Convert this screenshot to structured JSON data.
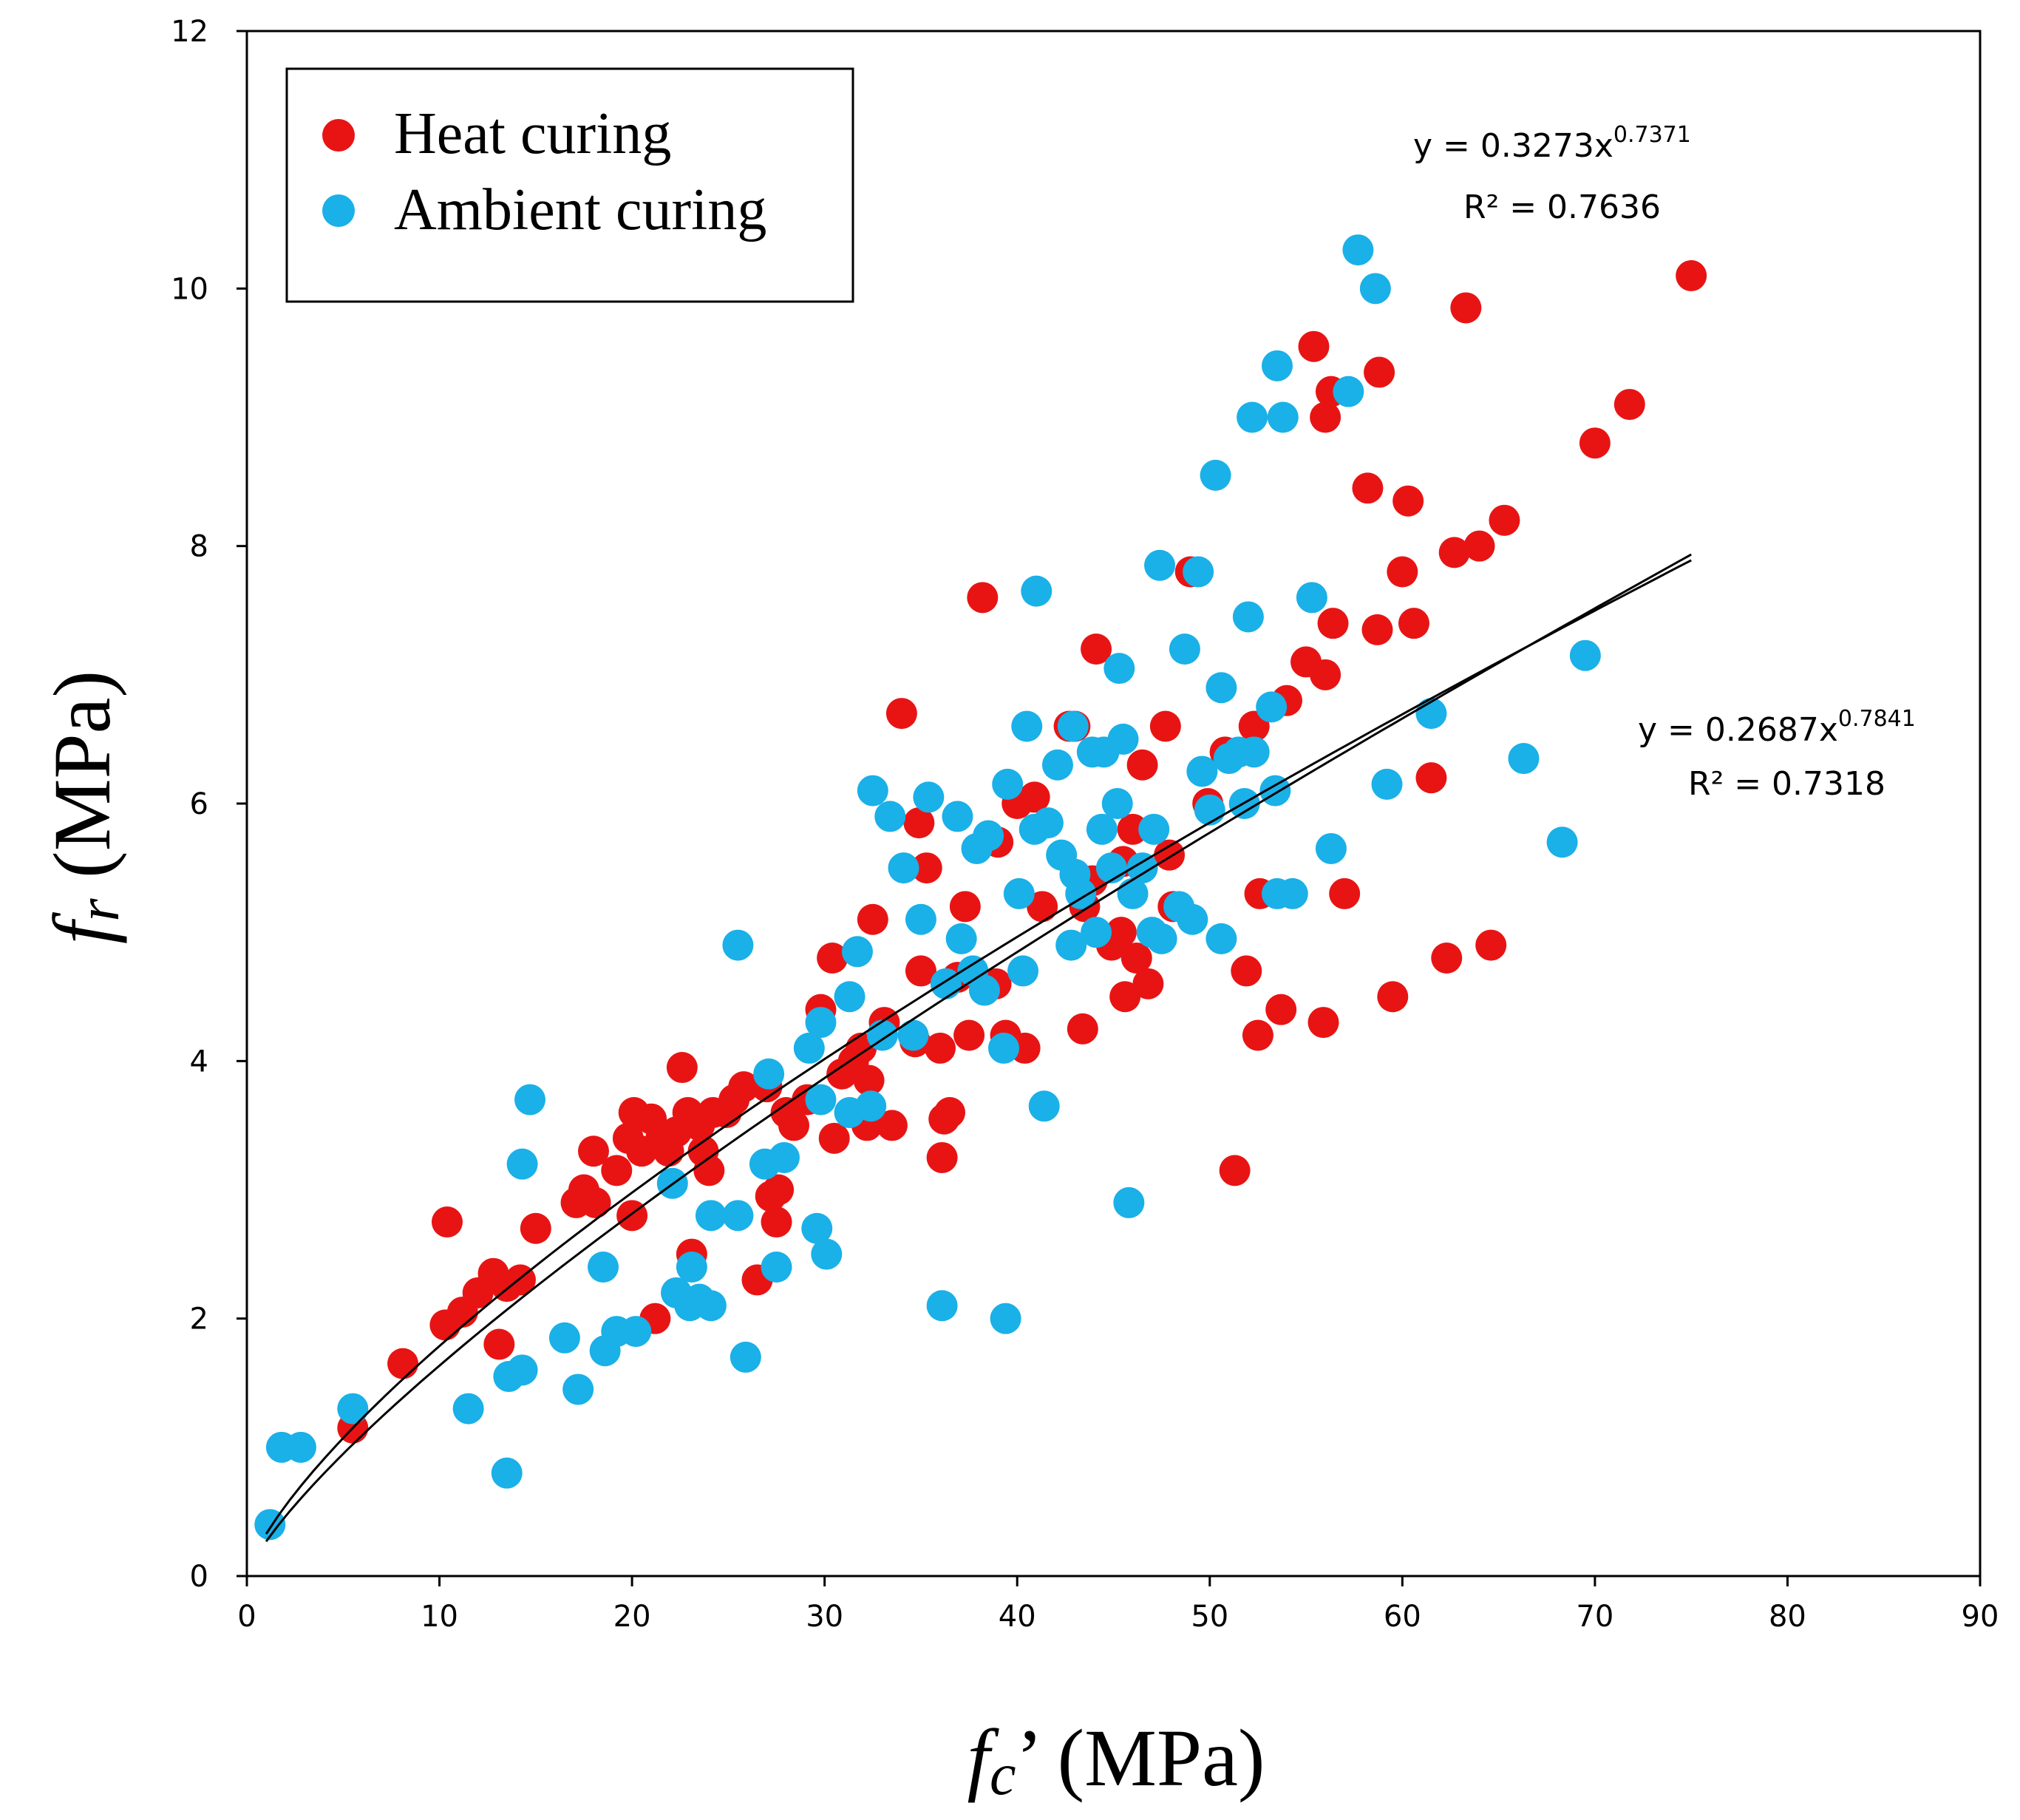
{
  "chart_data": {
    "type": "scatter",
    "title": "",
    "x_axis": {
      "label_symbol": "f",
      "label_sub": "c",
      "label_suffix": "’ (MPa)",
      "range": [
        0,
        90
      ],
      "ticks": [
        0,
        10,
        20,
        30,
        40,
        50,
        60,
        70,
        80,
        90
      ],
      "tick_labels": [
        "0",
        "10",
        "20",
        "30",
        "40",
        "50",
        "60",
        "70",
        "80",
        "90"
      ]
    },
    "y_axis": {
      "label_symbol": "f",
      "label_sub": "r",
      "label_suffix": " (MPa)",
      "range": [
        0,
        12
      ],
      "ticks": [
        0,
        2,
        4,
        6,
        8,
        10,
        12
      ],
      "tick_labels": [
        "0",
        "2",
        "4",
        "6",
        "8",
        "10",
        "12"
      ]
    },
    "grid": false,
    "legend": {
      "position": "top-left",
      "boxed": true
    },
    "series": [
      {
        "name": "Heat curing",
        "color": "#e81414",
        "points": [
          [
            5.5,
            1.15
          ],
          [
            8.1,
            1.65
          ],
          [
            10.3,
            1.95
          ],
          [
            10.4,
            2.75
          ],
          [
            11.2,
            2.05
          ],
          [
            12.0,
            2.2
          ],
          [
            12.8,
            2.35
          ],
          [
            13.1,
            1.8
          ],
          [
            13.5,
            2.25
          ],
          [
            14.2,
            2.3
          ],
          [
            15.0,
            2.7
          ],
          [
            17.1,
            2.9
          ],
          [
            17.5,
            3.0
          ],
          [
            18.0,
            3.3
          ],
          [
            18.1,
            2.9
          ],
          [
            19.2,
            3.15
          ],
          [
            19.8,
            3.4
          ],
          [
            20.0,
            2.8
          ],
          [
            20.1,
            3.6
          ],
          [
            20.5,
            3.3
          ],
          [
            21.0,
            3.55
          ],
          [
            21.2,
            2.0
          ],
          [
            21.5,
            3.4
          ],
          [
            21.9,
            3.3
          ],
          [
            22.3,
            3.45
          ],
          [
            22.6,
            3.95
          ],
          [
            22.9,
            3.6
          ],
          [
            23.1,
            2.5
          ],
          [
            23.5,
            3.5
          ],
          [
            23.7,
            3.3
          ],
          [
            24.0,
            3.15
          ],
          [
            24.2,
            3.6
          ],
          [
            24.9,
            3.6
          ],
          [
            25.3,
            3.7
          ],
          [
            25.8,
            3.8
          ],
          [
            26.5,
            2.3
          ],
          [
            27.0,
            3.8
          ],
          [
            27.2,
            2.95
          ],
          [
            27.5,
            2.75
          ],
          [
            27.6,
            3.0
          ],
          [
            28.0,
            3.6
          ],
          [
            28.4,
            3.5
          ],
          [
            29.1,
            3.7
          ],
          [
            29.8,
            4.4
          ],
          [
            30.4,
            4.8
          ],
          [
            30.5,
            3.4
          ],
          [
            30.9,
            3.9
          ],
          [
            31.5,
            4.0
          ],
          [
            31.9,
            4.1
          ],
          [
            32.2,
            3.5
          ],
          [
            32.3,
            3.85
          ],
          [
            32.5,
            5.1
          ],
          [
            33.1,
            4.3
          ],
          [
            33.5,
            3.5
          ],
          [
            34.0,
            6.7
          ],
          [
            34.7,
            4.15
          ],
          [
            34.9,
            5.85
          ],
          [
            35.0,
            4.7
          ],
          [
            35.3,
            5.5
          ],
          [
            36.0,
            4.1
          ],
          [
            36.1,
            3.25
          ],
          [
            36.2,
            3.55
          ],
          [
            36.5,
            3.6
          ],
          [
            36.9,
            4.65
          ],
          [
            37.3,
            5.2
          ],
          [
            37.5,
            4.2
          ],
          [
            38.2,
            7.6
          ],
          [
            38.9,
            4.6
          ],
          [
            39.0,
            5.7
          ],
          [
            39.4,
            4.2
          ],
          [
            40.0,
            6.0
          ],
          [
            40.4,
            4.1
          ],
          [
            40.9,
            6.05
          ],
          [
            41.3,
            5.2
          ],
          [
            42.7,
            6.6
          ],
          [
            43.0,
            6.6
          ],
          [
            43.4,
            4.25
          ],
          [
            43.5,
            5.2
          ],
          [
            43.9,
            5.4
          ],
          [
            44.1,
            7.2
          ],
          [
            44.9,
            4.9
          ],
          [
            45.4,
            5.0
          ],
          [
            45.5,
            5.55
          ],
          [
            45.6,
            4.5
          ],
          [
            46.0,
            5.8
          ],
          [
            46.2,
            4.8
          ],
          [
            46.5,
            6.3
          ],
          [
            46.8,
            4.6
          ],
          [
            47.7,
            6.6
          ],
          [
            47.9,
            5.6
          ],
          [
            48.1,
            5.2
          ],
          [
            49.0,
            7.8
          ],
          [
            49.9,
            6.0
          ],
          [
            50.8,
            6.4
          ],
          [
            51.3,
            3.15
          ],
          [
            51.9,
            4.7
          ],
          [
            52.3,
            6.6
          ],
          [
            52.5,
            4.2
          ],
          [
            52.6,
            5.3
          ],
          [
            53.7,
            4.4
          ],
          [
            54.0,
            6.8
          ],
          [
            55.0,
            7.1
          ],
          [
            55.4,
            9.55
          ],
          [
            55.9,
            4.3
          ],
          [
            56.0,
            7.0
          ],
          [
            56.0,
            9.0
          ],
          [
            56.3,
            9.2
          ],
          [
            56.4,
            7.4
          ],
          [
            57.0,
            5.3
          ],
          [
            58.2,
            8.45
          ],
          [
            58.7,
            7.35
          ],
          [
            58.8,
            9.35
          ],
          [
            59.5,
            4.5
          ],
          [
            60.0,
            7.8
          ],
          [
            60.3,
            8.35
          ],
          [
            60.6,
            7.4
          ],
          [
            61.5,
            6.2
          ],
          [
            62.3,
            4.8
          ],
          [
            62.7,
            7.95
          ],
          [
            63.3,
            9.85
          ],
          [
            64.0,
            8.0
          ],
          [
            64.6,
            4.9
          ],
          [
            65.3,
            8.2
          ],
          [
            70.0,
            8.8
          ],
          [
            71.8,
            9.1
          ],
          [
            75.0,
            10.1
          ]
        ]
      },
      {
        "name": "Ambient curing",
        "color": "#1ab0e8",
        "points": [
          [
            1.2,
            0.4
          ],
          [
            1.8,
            1.0
          ],
          [
            2.8,
            1.0
          ],
          [
            5.5,
            1.3
          ],
          [
            11.5,
            1.3
          ],
          [
            13.5,
            0.8
          ],
          [
            13.6,
            1.55
          ],
          [
            14.3,
            1.6
          ],
          [
            14.3,
            3.2
          ],
          [
            14.7,
            3.7
          ],
          [
            16.5,
            1.85
          ],
          [
            17.2,
            1.45
          ],
          [
            18.5,
            2.4
          ],
          [
            18.6,
            1.75
          ],
          [
            19.2,
            1.9
          ],
          [
            20.2,
            1.9
          ],
          [
            22.1,
            3.05
          ],
          [
            22.3,
            2.2
          ],
          [
            23.0,
            2.1
          ],
          [
            23.1,
            2.4
          ],
          [
            23.5,
            2.15
          ],
          [
            24.1,
            2.1
          ],
          [
            24.1,
            2.8
          ],
          [
            25.5,
            4.9
          ],
          [
            25.5,
            2.8
          ],
          [
            25.9,
            1.7
          ],
          [
            26.9,
            3.2
          ],
          [
            27.1,
            3.9
          ],
          [
            27.5,
            2.4
          ],
          [
            27.9,
            3.25
          ],
          [
            29.2,
            4.1
          ],
          [
            29.6,
            2.7
          ],
          [
            29.8,
            3.7
          ],
          [
            29.8,
            4.3
          ],
          [
            30.1,
            2.5
          ],
          [
            31.3,
            3.6
          ],
          [
            31.3,
            4.5
          ],
          [
            31.7,
            4.85
          ],
          [
            32.4,
            3.65
          ],
          [
            32.5,
            6.1
          ],
          [
            33.0,
            4.2
          ],
          [
            33.4,
            5.9
          ],
          [
            34.1,
            5.5
          ],
          [
            34.6,
            4.2
          ],
          [
            35.0,
            5.1
          ],
          [
            35.4,
            6.05
          ],
          [
            36.1,
            2.1
          ],
          [
            36.3,
            4.6
          ],
          [
            36.9,
            5.9
          ],
          [
            37.1,
            4.95
          ],
          [
            37.7,
            4.7
          ],
          [
            37.9,
            5.65
          ],
          [
            38.3,
            4.55
          ],
          [
            38.5,
            5.75
          ],
          [
            39.3,
            4.1
          ],
          [
            39.4,
            2.0
          ],
          [
            39.5,
            6.15
          ],
          [
            40.1,
            5.3
          ],
          [
            40.3,
            4.7
          ],
          [
            40.5,
            6.6
          ],
          [
            40.9,
            5.8
          ],
          [
            41.0,
            7.65
          ],
          [
            41.4,
            3.65
          ],
          [
            41.6,
            5.85
          ],
          [
            42.1,
            6.3
          ],
          [
            42.3,
            5.6
          ],
          [
            42.8,
            4.9
          ],
          [
            42.9,
            6.6
          ],
          [
            43.0,
            5.45
          ],
          [
            43.3,
            5.3
          ],
          [
            43.9,
            6.4
          ],
          [
            44.1,
            5.0
          ],
          [
            44.4,
            5.8
          ],
          [
            44.5,
            6.4
          ],
          [
            44.9,
            5.5
          ],
          [
            45.2,
            6.0
          ],
          [
            45.3,
            7.05
          ],
          [
            45.5,
            6.5
          ],
          [
            45.8,
            2.9
          ],
          [
            46.0,
            5.3
          ],
          [
            46.5,
            5.5
          ],
          [
            47.0,
            5.0
          ],
          [
            47.1,
            5.8
          ],
          [
            47.4,
            7.85
          ],
          [
            47.5,
            4.95
          ],
          [
            48.4,
            5.2
          ],
          [
            48.7,
            7.2
          ],
          [
            49.1,
            5.1
          ],
          [
            49.4,
            7.8
          ],
          [
            49.6,
            6.25
          ],
          [
            50.0,
            5.95
          ],
          [
            50.3,
            8.55
          ],
          [
            50.6,
            4.95
          ],
          [
            50.6,
            6.9
          ],
          [
            51.0,
            6.35
          ],
          [
            51.5,
            6.4
          ],
          [
            51.8,
            6.0
          ],
          [
            52.0,
            7.45
          ],
          [
            52.2,
            9.0
          ],
          [
            52.3,
            6.4
          ],
          [
            53.2,
            6.75
          ],
          [
            53.4,
            6.1
          ],
          [
            53.5,
            5.3
          ],
          [
            53.5,
            9.4
          ],
          [
            53.8,
            9.0
          ],
          [
            54.3,
            5.3
          ],
          [
            55.3,
            7.6
          ],
          [
            56.3,
            5.65
          ],
          [
            57.2,
            9.2
          ],
          [
            57.7,
            10.3
          ],
          [
            58.6,
            10.0
          ],
          [
            59.2,
            6.15
          ],
          [
            61.5,
            6.7
          ],
          [
            66.3,
            6.35
          ],
          [
            68.3,
            5.7
          ],
          [
            69.5,
            7.15
          ]
        ]
      }
    ],
    "trendlines": [
      {
        "name": "Heat curing power fit",
        "equation_prefix": "y = 0.3273x",
        "equation_exponent": "0.7371",
        "r2_label": "R² = 0.7636",
        "a": 0.3273,
        "b": 0.7371,
        "x_range": [
          1.0,
          75.0
        ]
      },
      {
        "name": "Ambient curing power fit",
        "equation_prefix": "y = 0.2687x",
        "equation_exponent": "0.7841",
        "r2_label": "R² = 0.7318",
        "a": 0.2687,
        "b": 0.7841,
        "x_range": [
          1.0,
          75.0
        ]
      }
    ]
  }
}
